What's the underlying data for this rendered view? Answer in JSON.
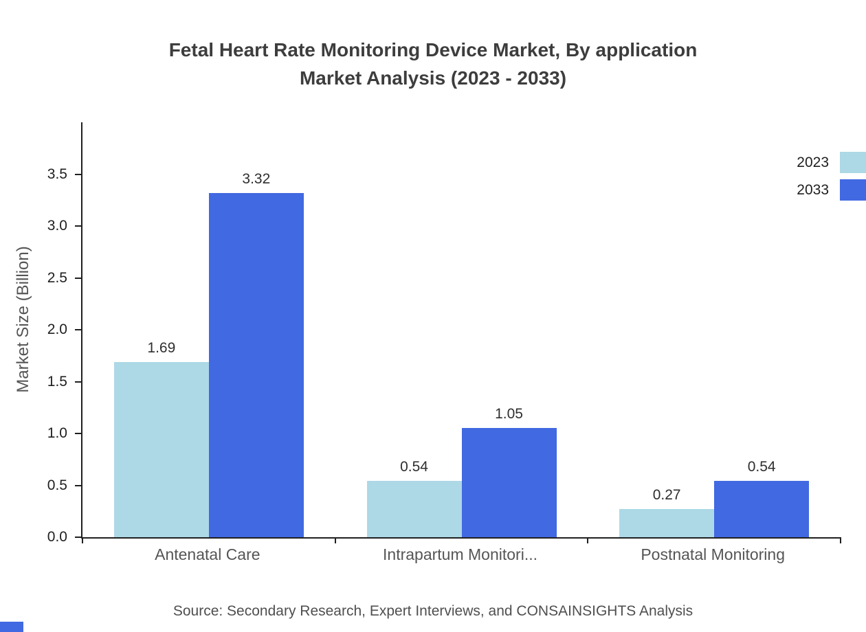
{
  "source": "Source: Secondary Research, Expert Interviews, and CONSAINSIGHTS Analysis",
  "chart_data": {
    "type": "bar",
    "title": "Fetal Heart Rate Monitoring Device Market, By application Market Analysis (2023 - 2033)",
    "title_lines": [
      "Fetal Heart Rate Monitoring Device Market, By application",
      "Market Analysis (2023 - 2033)"
    ],
    "categories": [
      "Antenatal Care",
      "Intrapartum Monitori...",
      "Postnatal Monitoring"
    ],
    "series": [
      {
        "name": "2023",
        "color": "#ADD8E6",
        "values": [
          1.69,
          0.54,
          0.27
        ]
      },
      {
        "name": "2033",
        "color": "#4169E1",
        "values": [
          3.32,
          1.05,
          0.54
        ]
      }
    ],
    "xlabel": "",
    "ylabel": "Market Size (Billion)",
    "ylim": [
      0,
      4.0
    ],
    "yticks": [
      0.0,
      0.5,
      1.0,
      1.5,
      2.0,
      2.5,
      3.0,
      3.5
    ],
    "grid": false,
    "value_labels": true,
    "legend_position": "top-right",
    "axis_color": "#1f1f1f"
  }
}
